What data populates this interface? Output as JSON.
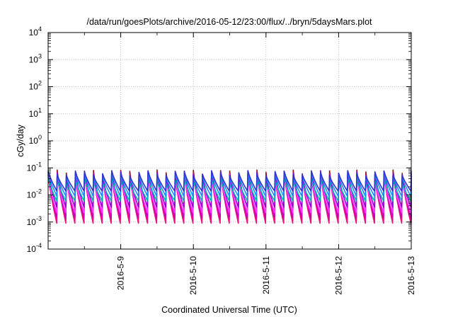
{
  "chart_data": {
    "type": "line",
    "title": "/data/run/goesPlots/archive/2016-05-12/23:00/flux/../bryn/5daysMars.plot",
    "xlabel": "Coordinated Universal Time (UTC)",
    "ylabel": "cGy/day",
    "yscale": "log",
    "ylim": [
      0.0001,
      10000
    ],
    "xlim": [
      "2016-05-08 00:00",
      "2016-05-13 00:00"
    ],
    "grid": true,
    "legend": "none",
    "y_ticks": [
      {
        "base": "10",
        "exp": "-4"
      },
      {
        "base": "10",
        "exp": "-3"
      },
      {
        "base": "10",
        "exp": "-2"
      },
      {
        "base": "10",
        "exp": "-1"
      },
      {
        "base": "10",
        "exp": "0"
      },
      {
        "base": "10",
        "exp": "1"
      },
      {
        "base": "10",
        "exp": "2"
      },
      {
        "base": "10",
        "exp": "3"
      },
      {
        "base": "10",
        "exp": "4"
      }
    ],
    "x_ticks": [
      {
        "label": "2016-5-9",
        "day": 1
      },
      {
        "label": "2016-5-10",
        "day": 2
      },
      {
        "label": "2016-5-11",
        "day": 3
      },
      {
        "label": "2016-5-12",
        "day": 4
      },
      {
        "label": "2016-5-13",
        "day": 5
      }
    ],
    "pattern": {
      "period_hours": 3,
      "start_hour_offset": 0,
      "peak_high": 0.08,
      "peak_low": 0.05
    },
    "series": [
      {
        "color": "#8b1a1a",
        "peak_factor": 1.05,
        "trough": 0.0012
      },
      {
        "color": "#e8117f",
        "peak_factor": 0.85,
        "trough": 0.0009
      },
      {
        "color": "#cc00cc",
        "peak_factor": 0.75,
        "trough": 0.0015
      },
      {
        "color": "#ff33ff",
        "peak_factor": 0.65,
        "trough": 0.0022
      },
      {
        "color": "#9400d3",
        "peak_factor": 0.95,
        "trough": 0.0035
      },
      {
        "color": "#00b3b3",
        "peak_factor": 0.55,
        "trough": 0.006
      },
      {
        "color": "#1a8cff",
        "peak_factor": 0.9,
        "trough": 0.009
      },
      {
        "color": "#3333cc",
        "peak_factor": 1.0,
        "trough": 0.014
      }
    ]
  }
}
